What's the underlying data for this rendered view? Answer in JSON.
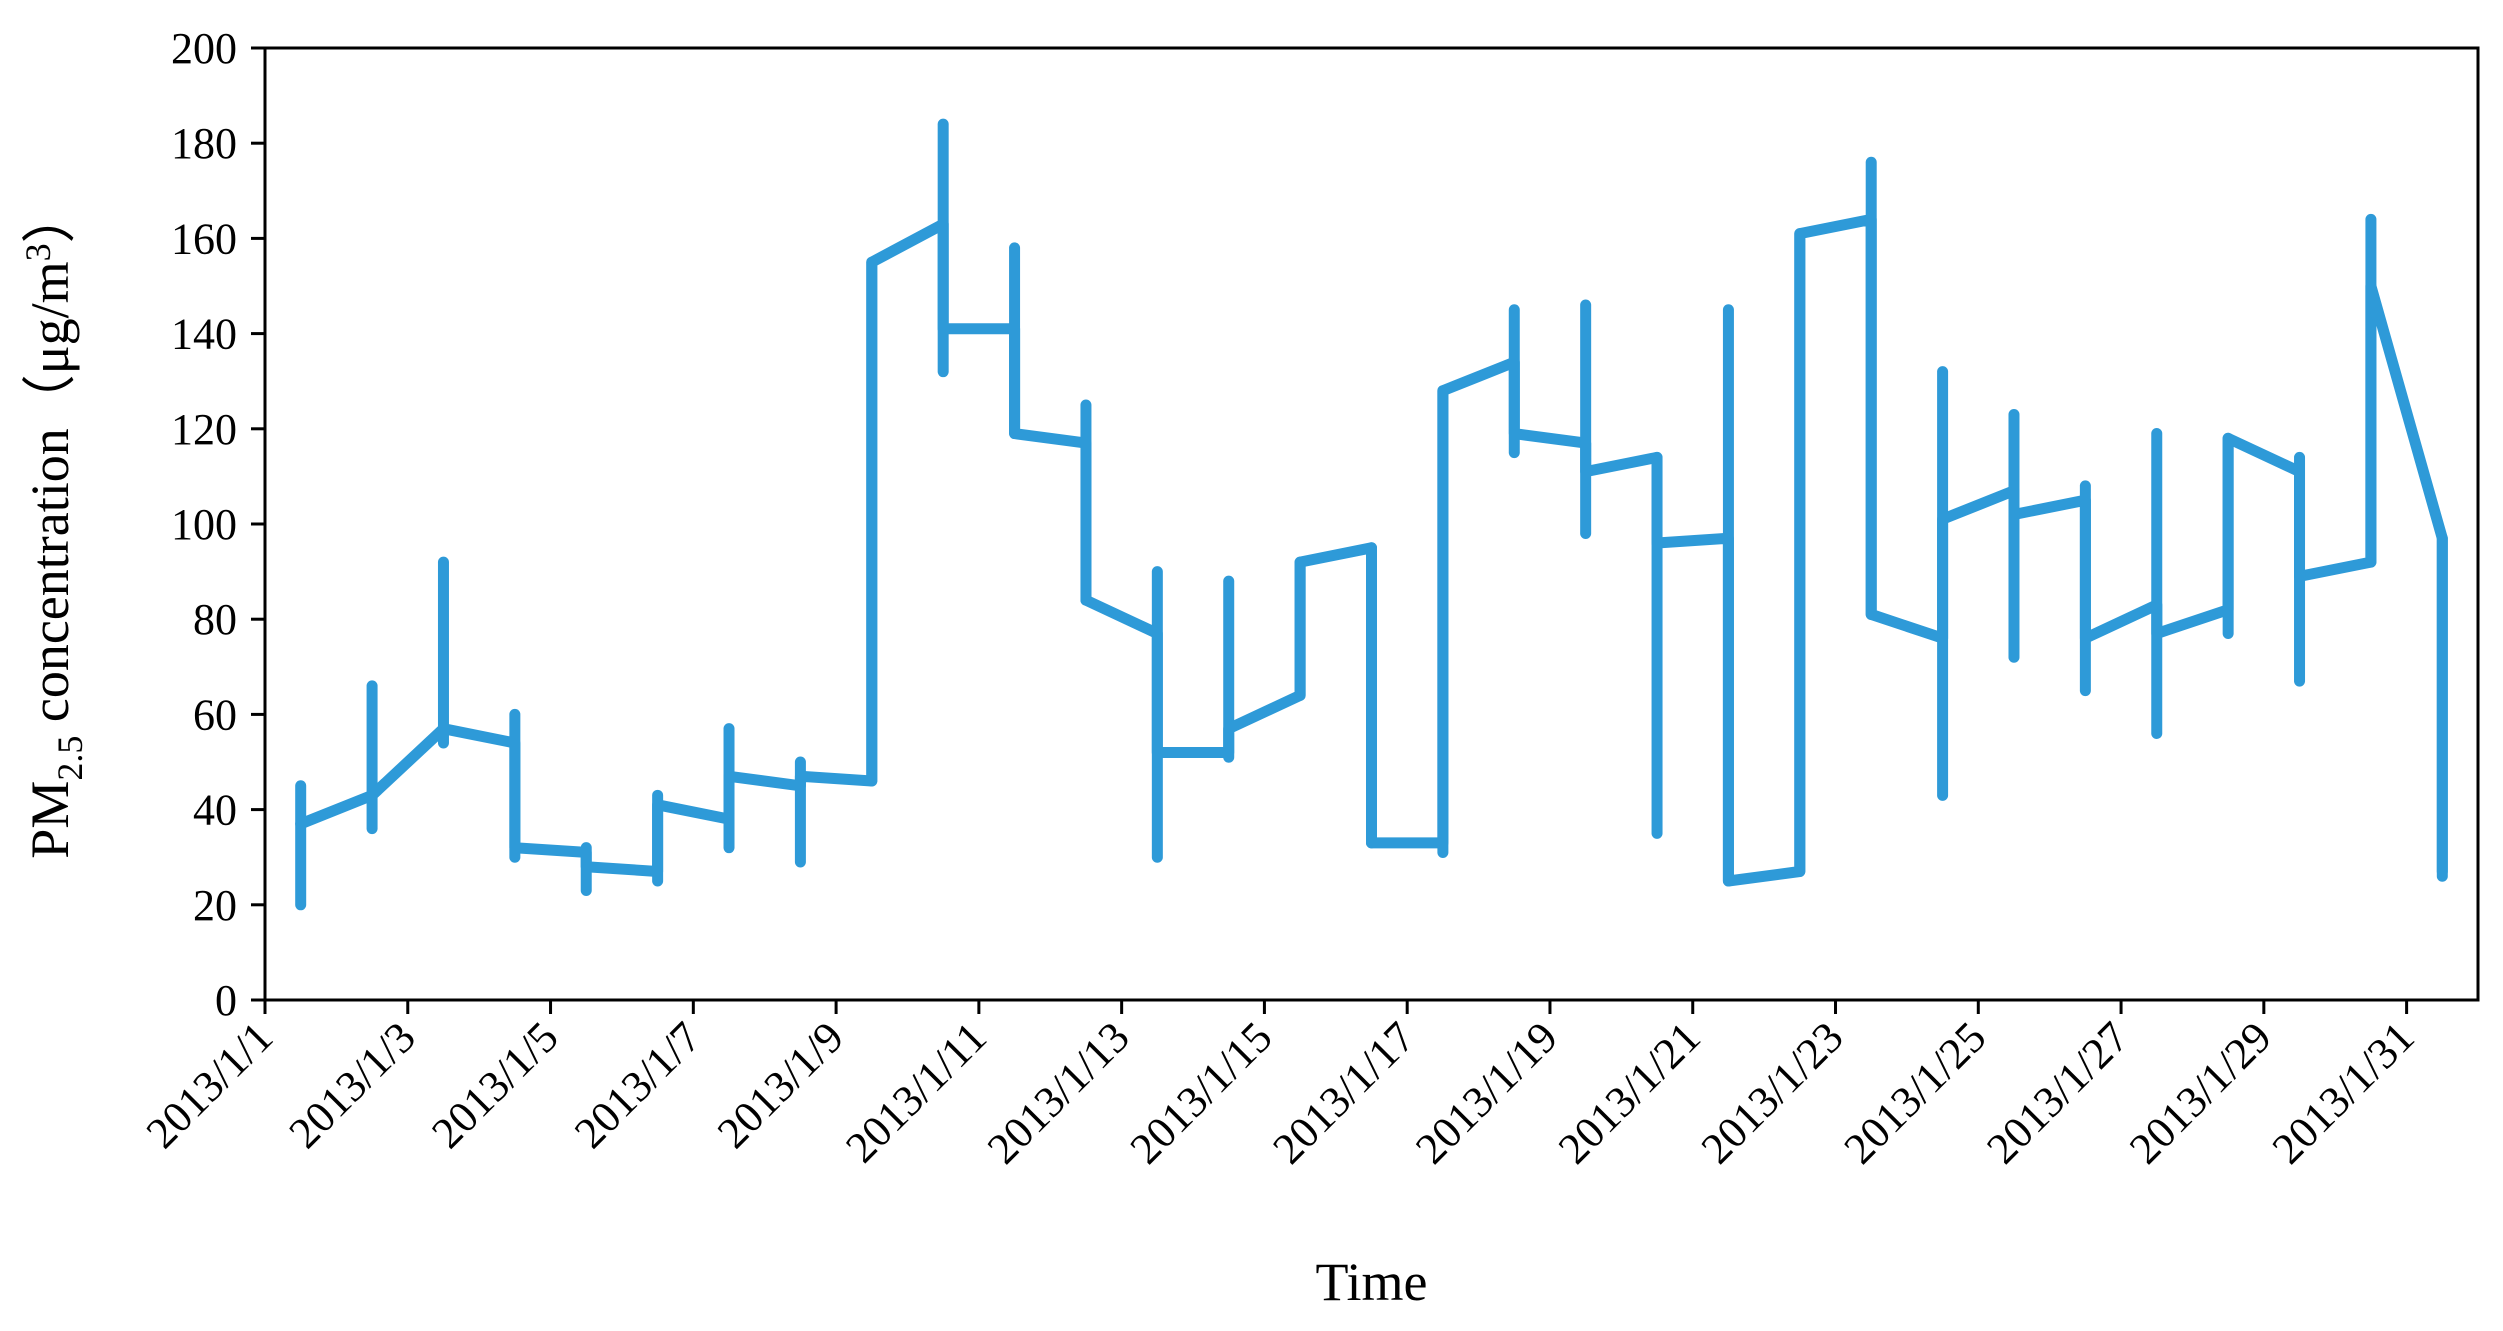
{
  "chart_data": {
    "type": "line",
    "xlabel": "Time",
    "ylabel": {
      "main": "PM",
      "sub": "2.5",
      "rest": " concentration（μg/m",
      "sup": "3",
      "end": "）"
    },
    "ylim": [
      0,
      200
    ],
    "yticks": [
      0,
      20,
      40,
      60,
      80,
      100,
      120,
      140,
      160,
      180,
      200
    ],
    "xlim": [
      0,
      31
    ],
    "xticks": [
      {
        "value": 0,
        "label": "2013/1/1"
      },
      {
        "value": 2,
        "label": "2013/1/3"
      },
      {
        "value": 4,
        "label": "2013/1/5"
      },
      {
        "value": 6,
        "label": "2013/1/7"
      },
      {
        "value": 8,
        "label": "2013/1/9"
      },
      {
        "value": 10,
        "label": "2013/1/11"
      },
      {
        "value": 12,
        "label": "2013/1/13"
      },
      {
        "value": 14,
        "label": "2013/1/15"
      },
      {
        "value": 16,
        "label": "2013/1/17"
      },
      {
        "value": 18,
        "label": "2013/1/19"
      },
      {
        "value": 20,
        "label": "2013/1/21"
      },
      {
        "value": 22,
        "label": "2013/1/23"
      },
      {
        "value": 24,
        "label": "2013/1/25"
      },
      {
        "value": 26,
        "label": "2013/1/27"
      },
      {
        "value": 28,
        "label": "2013/1/29"
      },
      {
        "value": 30,
        "label": "2013/1/31"
      }
    ],
    "grid": false,
    "line_color": "#2e9ad8",
    "series": [
      {
        "values": [
          [
            0.5,
            37
          ],
          [
            1.5,
            43
          ],
          [
            2.5,
            57
          ],
          [
            3.5,
            54
          ],
          [
            3.5,
            32
          ],
          [
            4.5,
            31
          ],
          [
            4.5,
            28
          ],
          [
            5.5,
            27
          ],
          [
            5.5,
            41
          ],
          [
            6.5,
            38
          ],
          [
            6.5,
            47
          ],
          [
            7.5,
            45
          ],
          [
            7.5,
            47
          ],
          [
            8.5,
            46
          ],
          [
            8.5,
            155
          ],
          [
            9.5,
            163
          ],
          [
            9.5,
            141
          ],
          [
            10.5,
            141
          ],
          [
            10.5,
            119
          ],
          [
            11.5,
            117
          ],
          [
            11.5,
            84
          ],
          [
            12.5,
            77
          ],
          [
            12.5,
            52
          ],
          [
            13.5,
            52
          ],
          [
            13.5,
            57
          ],
          [
            14.5,
            64
          ],
          [
            14.5,
            92
          ],
          [
            15.5,
            95
          ],
          [
            15.5,
            33
          ],
          [
            16.5,
            33
          ],
          [
            16.5,
            128
          ],
          [
            17.5,
            134
          ],
          [
            17.5,
            119
          ],
          [
            18.5,
            117
          ],
          [
            18.5,
            111
          ],
          [
            19.5,
            114
          ],
          [
            19.5,
            96
          ],
          [
            20.5,
            97
          ],
          [
            20.5,
            25
          ],
          [
            21.5,
            27
          ],
          [
            21.5,
            161
          ],
          [
            22.5,
            164
          ],
          [
            22.5,
            81
          ],
          [
            23.5,
            76
          ],
          [
            23.5,
            101
          ],
          [
            24.5,
            107
          ],
          [
            24.5,
            102
          ],
          [
            25.5,
            105
          ],
          [
            25.5,
            76
          ],
          [
            26.5,
            83
          ],
          [
            26.5,
            77
          ],
          [
            27.5,
            82
          ],
          [
            27.5,
            118
          ],
          [
            28.5,
            111
          ],
          [
            28.5,
            89
          ],
          [
            29.5,
            92
          ],
          [
            29.5,
            150
          ],
          [
            30.5,
            97
          ],
          [
            30.5,
            27
          ]
        ]
      }
    ],
    "error_bars": [
      {
        "x": 0.5,
        "low": 20,
        "high": 45
      },
      {
        "x": 1.5,
        "low": 36,
        "high": 66
      },
      {
        "x": 2.5,
        "low": 54,
        "high": 92
      },
      {
        "x": 3.5,
        "low": 30,
        "high": 60
      },
      {
        "x": 4.5,
        "low": 23,
        "high": 32
      },
      {
        "x": 5.5,
        "low": 25,
        "high": 43
      },
      {
        "x": 6.5,
        "low": 32,
        "high": 57
      },
      {
        "x": 7.5,
        "low": 29,
        "high": 50
      },
      {
        "x": 8.5,
        "low": 46,
        "high": 155
      },
      {
        "x": 9.5,
        "low": 132,
        "high": 184
      },
      {
        "x": 10.5,
        "low": 119,
        "high": 158
      },
      {
        "x": 11.5,
        "low": 84,
        "high": 125
      },
      {
        "x": 12.5,
        "low": 30,
        "high": 90
      },
      {
        "x": 13.5,
        "low": 51,
        "high": 88
      },
      {
        "x": 14.5,
        "low": 64,
        "high": 92
      },
      {
        "x": 15.5,
        "low": 33,
        "high": 95
      },
      {
        "x": 16.5,
        "low": 31,
        "high": 128
      },
      {
        "x": 17.5,
        "low": 115,
        "high": 145
      },
      {
        "x": 18.5,
        "low": 98,
        "high": 146
      },
      {
        "x": 19.5,
        "low": 35,
        "high": 114
      },
      {
        "x": 20.5,
        "low": 25,
        "high": 145
      },
      {
        "x": 21.5,
        "low": 27,
        "high": 161
      },
      {
        "x": 22.5,
        "low": 81,
        "high": 176
      },
      {
        "x": 23.5,
        "low": 43,
        "high": 132
      },
      {
        "x": 24.5,
        "low": 72,
        "high": 123
      },
      {
        "x": 25.5,
        "low": 65,
        "high": 108
      },
      {
        "x": 26.5,
        "low": 56,
        "high": 119
      },
      {
        "x": 27.5,
        "low": 77,
        "high": 118
      },
      {
        "x": 28.5,
        "low": 67,
        "high": 114
      },
      {
        "x": 29.5,
        "low": 92,
        "high": 164
      },
      {
        "x": 30.5,
        "low": 26,
        "high": 97
      }
    ]
  }
}
